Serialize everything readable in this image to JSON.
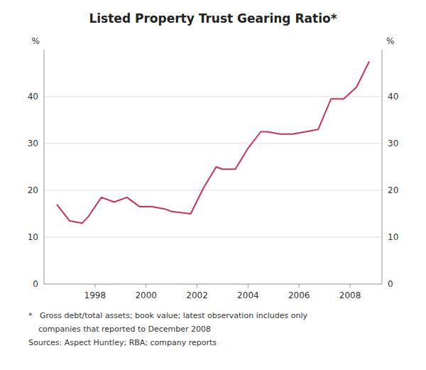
{
  "chart_data": {
    "type": "line",
    "title": "Listed Property Trust Gearing Ratio*",
    "ylabel": "%",
    "y2label": "%",
    "footnotes": [
      "*   Gross debt/total assets; book value; latest observation includes only",
      "    companies that reported to December 2008",
      "Sources: Aspect Huntley; RBA; company reports"
    ],
    "color": "#c8315a",
    "x": [
      1996.5,
      1997.0,
      1997.5,
      1997.75,
      1998.25,
      1998.75,
      1999.25,
      1999.75,
      2000.25,
      2000.75,
      2001.0,
      2001.75,
      2002.25,
      2002.75,
      2003.0,
      2003.5,
      2004.0,
      2004.5,
      2004.75,
      2005.25,
      2005.75,
      2006.25,
      2006.75,
      2007.25,
      2007.75,
      2008.25,
      2008.75
    ],
    "values": [
      17.0,
      13.5,
      13.0,
      14.5,
      18.5,
      17.5,
      18.5,
      16.5,
      16.5,
      16.0,
      15.5,
      15.0,
      20.5,
      25.0,
      24.5,
      24.5,
      29.0,
      32.5,
      32.5,
      32.0,
      32.0,
      32.5,
      33.0,
      39.5,
      39.5,
      42.0,
      47.5
    ],
    "xlim": [
      1996.0,
      2009.25
    ],
    "xticks": [
      1998,
      2000,
      2002,
      2004,
      2006,
      2008
    ],
    "ylim": [
      0,
      50
    ],
    "yticks": [
      0,
      10,
      20,
      30,
      40
    ],
    "y2lim": [
      0,
      50
    ],
    "y2ticks": [
      0,
      10,
      20,
      30,
      40
    ],
    "grid": true
  }
}
